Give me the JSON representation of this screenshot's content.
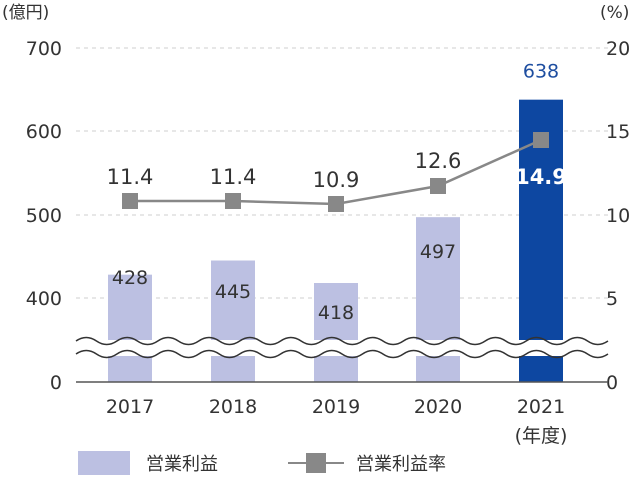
{
  "chart_data": {
    "type": "bar",
    "left_unit": "(億円)",
    "right_unit": "(%)",
    "left_ticks": [
      "700",
      "600",
      "500",
      "400",
      "0"
    ],
    "right_ticks": [
      "20",
      "15",
      "10",
      "5",
      "0"
    ],
    "axis_break": true,
    "categories": [
      "2017",
      "2018",
      "2019",
      "2020",
      "2021"
    ],
    "x_suffix": "(年度)",
    "y_left_break_range": [
      400,
      700
    ],
    "y_right_range": [
      0,
      20
    ],
    "series": [
      {
        "name": "営業利益",
        "kind": "bar",
        "axis": "left",
        "values": [
          428,
          445,
          418,
          497,
          638
        ],
        "labels": [
          "428",
          "445",
          "418",
          "497",
          "638"
        ],
        "color": "#bcc0e2",
        "highlight_color": "#0d47a1",
        "highlight_index": 4
      },
      {
        "name": "営業利益率",
        "kind": "line",
        "axis": "right",
        "values": [
          11.4,
          11.4,
          10.9,
          12.6,
          14.9
        ],
        "labels": [
          "11.4",
          "11.4",
          "10.9",
          "12.6",
          "14.9"
        ],
        "color": "#888888"
      }
    ],
    "grid": true,
    "legend_position": "bottom"
  }
}
